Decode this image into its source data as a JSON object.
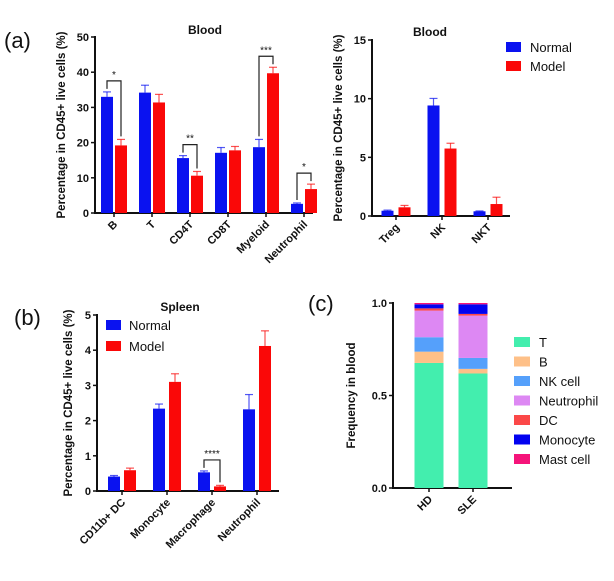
{
  "panel_labels": [
    "(a)",
    "(b)",
    "(c)"
  ],
  "legend_groups": [
    "Normal",
    "Model"
  ],
  "colors": {
    "Normal": "#0a12f0",
    "Model": "#fa0808",
    "T": "#43eeae",
    "B": "#fec088",
    "NK cell": "#55a0fb",
    "Neutrophil": "#dd88f3",
    "DC": "#fb4848",
    "Monocyte": "#0202f0",
    "Mast cell": "#f5147a"
  },
  "chart_data": [
    {
      "id": "a-left",
      "panel": "(a)",
      "type": "bar",
      "title": "Blood",
      "xlabel": "",
      "ylabel": "Percentage in CD45+ live cells (%)",
      "ylim": [
        0,
        50
      ],
      "yticks": [
        "0",
        "10",
        "20",
        "30",
        "40",
        "50"
      ],
      "categories": [
        "B",
        "T",
        "CD4T",
        "CD8T",
        "Myeloid",
        "Neutrophil"
      ],
      "series": [
        {
          "name": "Normal",
          "values": [
            33.0,
            34.2,
            15.6,
            17.1,
            18.7,
            2.6
          ],
          "error": [
            1.4,
            2.1,
            0.7,
            1.5,
            2.2,
            0.25
          ]
        },
        {
          "name": "Model",
          "values": [
            19.2,
            31.4,
            10.6,
            17.8,
            39.7,
            6.8
          ],
          "error": [
            1.7,
            2.3,
            1.2,
            1.1,
            1.7,
            1.4
          ]
        }
      ],
      "significance": [
        {
          "category": "B",
          "label": "*"
        },
        {
          "category": "CD4T",
          "label": "**"
        },
        {
          "category": "Myeloid",
          "label": "***"
        },
        {
          "category": "Neutrophil",
          "label": "*"
        }
      ],
      "legend": "none"
    },
    {
      "id": "a-right",
      "panel": "(a)",
      "type": "bar",
      "title": "Blood",
      "xlabel": "",
      "ylabel": "Percentage in CD45+ live cells (%)",
      "ylim": [
        0,
        15
      ],
      "yticks": [
        "0",
        "5",
        "10",
        "15"
      ],
      "categories": [
        "Treg",
        "NK",
        "NKT"
      ],
      "series": [
        {
          "name": "Normal",
          "values": [
            0.45,
            9.42,
            0.4
          ],
          "error": [
            0.05,
            0.6,
            0.03
          ]
        },
        {
          "name": "Model",
          "values": [
            0.74,
            5.75,
            1.02
          ],
          "error": [
            0.16,
            0.45,
            0.58
          ]
        }
      ],
      "significance": [],
      "legend": "top-right"
    },
    {
      "id": "b",
      "panel": "(b)",
      "type": "bar",
      "title": "Spleen",
      "xlabel": "",
      "ylabel": "Percentage in CD45+ live cells (%)",
      "ylim": [
        0,
        5
      ],
      "yticks": [
        "0",
        "1",
        "2",
        "3",
        "4",
        "5"
      ],
      "categories": [
        "CD11b+ DC",
        "Monocyte",
        "Macrophage",
        "Neutrophil"
      ],
      "series": [
        {
          "name": "Normal",
          "values": [
            0.41,
            2.34,
            0.53,
            2.32
          ],
          "error": [
            0.03,
            0.13,
            0.04,
            0.42
          ]
        },
        {
          "name": "Model",
          "values": [
            0.59,
            3.1,
            0.13,
            4.12
          ],
          "error": [
            0.06,
            0.23,
            0.03,
            0.43
          ]
        }
      ],
      "significance": [
        {
          "category": "Macrophage",
          "label": "****"
        }
      ],
      "legend": "top-left"
    },
    {
      "id": "c",
      "panel": "(c)",
      "type": "bar",
      "stacked": true,
      "title": "",
      "xlabel": "",
      "ylabel": "Frequency in blood",
      "ylim": [
        0,
        1.0
      ],
      "yticks": [
        "0.0",
        "0.5",
        "1.0"
      ],
      "categories": [
        "HD",
        "SLE"
      ],
      "series": [
        {
          "name": "T",
          "values": [
            0.676,
            0.619
          ]
        },
        {
          "name": "B",
          "values": [
            0.061,
            0.025
          ]
        },
        {
          "name": "NK cell",
          "values": [
            0.078,
            0.059
          ]
        },
        {
          "name": "Neutrophil",
          "values": [
            0.144,
            0.229
          ]
        },
        {
          "name": "DC",
          "values": [
            0.012,
            0.009
          ]
        },
        {
          "name": "Monocyte",
          "values": [
            0.022,
            0.052
          ]
        },
        {
          "name": "Mast cell",
          "values": [
            0.007,
            0.007
          ]
        }
      ],
      "legend": "right"
    }
  ]
}
